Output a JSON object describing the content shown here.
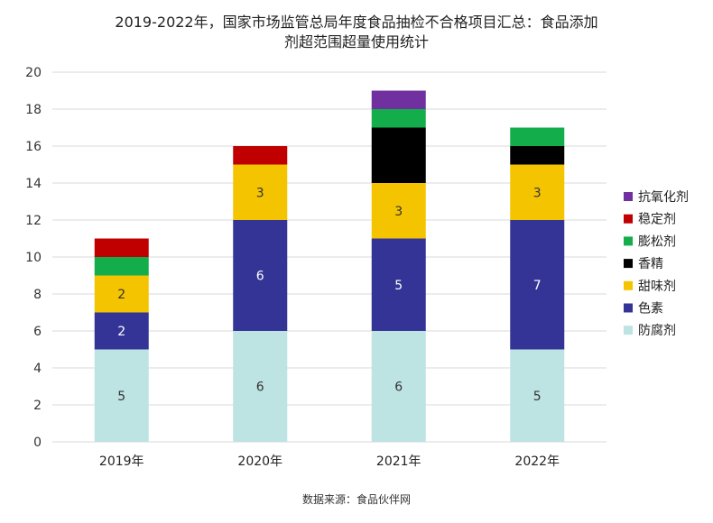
{
  "chart_data": {
    "type": "bar",
    "stacked": true,
    "title_line1": "2019-2022年，国家市场监管总局年度食品抽检不合格项目汇总：食品添加",
    "title_line2": "剂超范围超量使用统计",
    "categories": [
      "2019年",
      "2020年",
      "2021年",
      "2022年"
    ],
    "ylim": [
      0,
      20
    ],
    "yticks": [
      0,
      2,
      4,
      6,
      8,
      10,
      12,
      14,
      16,
      18,
      20
    ],
    "grid": true,
    "legend_position": "right",
    "series": [
      {
        "name": "防腐剂",
        "color": "#bde3e3",
        "values": [
          5,
          6,
          6,
          5
        ],
        "labels": [
          "5",
          "6",
          "6",
          "5"
        ]
      },
      {
        "name": "色素",
        "color": "#343496",
        "values": [
          2,
          6,
          5,
          7
        ],
        "labels": [
          "2",
          "6",
          "5",
          "7"
        ]
      },
      {
        "name": "甜味剂",
        "color": "#f5c400",
        "values": [
          2,
          3,
          3,
          3
        ],
        "labels": [
          "2",
          "3",
          "3",
          "3"
        ]
      },
      {
        "name": "香精",
        "color": "#000000",
        "values": [
          0,
          0,
          3,
          1
        ],
        "labels": [
          "",
          "",
          "",
          ""
        ]
      },
      {
        "name": "膨松剂",
        "color": "#13ad4b",
        "values": [
          1,
          0,
          1,
          1
        ],
        "labels": [
          "",
          "",
          "",
          ""
        ]
      },
      {
        "name": "稳定剂",
        "color": "#c00000",
        "values": [
          1,
          1,
          0,
          0
        ],
        "labels": [
          "",
          "",
          "",
          ""
        ]
      },
      {
        "name": "抗氧化剂",
        "color": "#7030a0",
        "values": [
          0,
          0,
          1,
          0
        ],
        "labels": [
          "",
          "",
          "",
          ""
        ]
      }
    ],
    "source": "数据来源：食品伙伴网"
  }
}
